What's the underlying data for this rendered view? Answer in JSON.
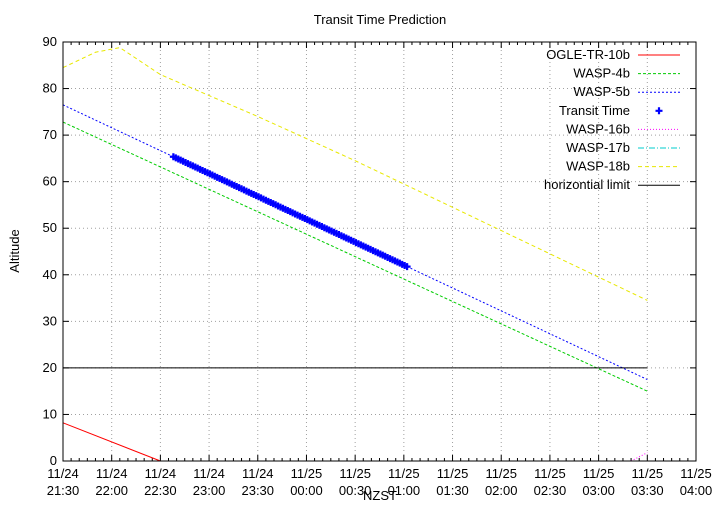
{
  "chart_data": {
    "type": "line",
    "title": "Transit Time Prediction",
    "xlabel": "NZST",
    "ylabel": "Altitude",
    "x_unit": "minutes after 11/24 21:30",
    "xlim": [
      0,
      390
    ],
    "ylim": [
      0,
      90
    ],
    "yticks": [
      0,
      10,
      20,
      30,
      40,
      50,
      60,
      70,
      80,
      90
    ],
    "xticks": [
      {
        "value": 0,
        "date": "11/24",
        "time": "21:30"
      },
      {
        "value": 30,
        "date": "11/24",
        "time": "22:00"
      },
      {
        "value": 60,
        "date": "11/24",
        "time": "22:30"
      },
      {
        "value": 90,
        "date": "11/24",
        "time": "23:00"
      },
      {
        "value": 120,
        "date": "11/24",
        "time": "23:30"
      },
      {
        "value": 150,
        "date": "11/25",
        "time": "00:00"
      },
      {
        "value": 180,
        "date": "11/25",
        "time": "00:30"
      },
      {
        "value": 210,
        "date": "11/25",
        "time": "01:00"
      },
      {
        "value": 240,
        "date": "11/25",
        "time": "01:30"
      },
      {
        "value": 270,
        "date": "11/25",
        "time": "02:00"
      },
      {
        "value": 300,
        "date": "11/25",
        "time": "02:30"
      },
      {
        "value": 330,
        "date": "11/25",
        "time": "03:00"
      },
      {
        "value": 360,
        "date": "11/25",
        "time": "03:30"
      },
      {
        "value": 390,
        "date": "11/25",
        "time": "04:00"
      }
    ],
    "grid": true,
    "legend_position": "top-right",
    "series": [
      {
        "name": "OGLE-TR-10b",
        "color": "#ff0000",
        "dash": "",
        "points": [
          [
            0,
            8.2
          ],
          [
            60,
            0
          ]
        ]
      },
      {
        "name": "WASP-4b",
        "color": "#00cc00",
        "dash": "3,2",
        "points": [
          [
            0,
            72.8
          ],
          [
            360,
            15
          ]
        ]
      },
      {
        "name": "WASP-5b",
        "color": "#0000ff",
        "dash": "2,2",
        "points": [
          [
            0,
            76.5
          ],
          [
            360,
            17.5
          ]
        ]
      },
      {
        "name": "Transit Time",
        "color": "#0000ff",
        "marker": "plus",
        "start": 68,
        "end": 212,
        "step": 1.5,
        "line": [
          [
            0,
            76.5
          ],
          [
            360,
            17.5
          ]
        ]
      },
      {
        "name": "WASP-16b",
        "color": "#ff00ff",
        "dash": "1,2",
        "points": [
          [
            350,
            0
          ],
          [
            360,
            1.8
          ]
        ]
      },
      {
        "name": "WASP-17b",
        "color": "#00cccc",
        "dash": "6,2,1,2",
        "points": []
      },
      {
        "name": "WASP-18b",
        "color": "#e8e800",
        "dash": "4,3",
        "points": [
          [
            0,
            84.5
          ],
          [
            20,
            87.8
          ],
          [
            35,
            88.8
          ],
          [
            60,
            83
          ],
          [
            90,
            78.5
          ],
          [
            120,
            74
          ],
          [
            180,
            64.5
          ],
          [
            210,
            59.5
          ],
          [
            240,
            54.5
          ],
          [
            300,
            44.5
          ],
          [
            360,
            34.5
          ]
        ]
      },
      {
        "name": "horizontial limit",
        "color": "#000000",
        "dash": "",
        "points": [
          [
            0,
            20
          ],
          [
            360,
            20
          ]
        ]
      }
    ]
  }
}
